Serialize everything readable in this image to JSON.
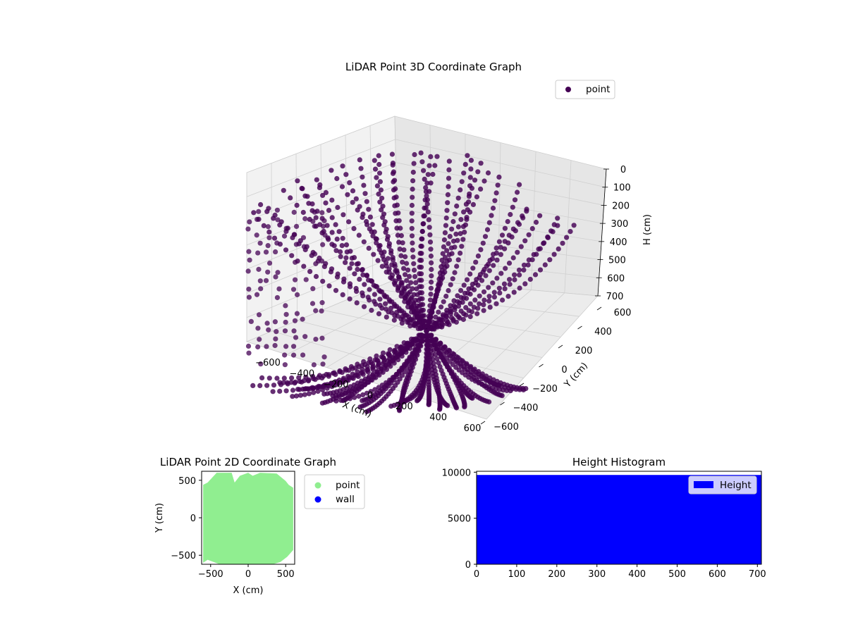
{
  "chart_data": [
    {
      "type": "scatter",
      "title": "LiDAR Point 3D Coordinate Graph",
      "xlabel": "X (cm)",
      "ylabel": "Y (cm)",
      "zlabel": "H (cm)",
      "xlim": [
        -600,
        600
      ],
      "ylim": [
        -600,
        600
      ],
      "zlim": [
        700,
        0
      ],
      "x_ticks": [
        "−600",
        "−400",
        "−200",
        "0",
        "200",
        "400",
        "600"
      ],
      "y_ticks": [
        "−600",
        "−400",
        "−200",
        "0",
        "200",
        "400",
        "600"
      ],
      "z_ticks": [
        "0",
        "100",
        "200",
        "300",
        "400",
        "500",
        "600",
        "700"
      ],
      "series": [
        {
          "name": "point",
          "color": "#440154"
        }
      ],
      "legend": "top-right",
      "grid": true
    },
    {
      "type": "scatter",
      "title": "LiDAR Point 2D Coordinate Graph",
      "xlabel": "X (cm)",
      "ylabel": "Y (cm)",
      "xlim": [
        -620,
        620
      ],
      "ylim": [
        -620,
        620
      ],
      "x_ticks": [
        "−500",
        "0",
        "500"
      ],
      "y_ticks": [
        "−500",
        "0",
        "500"
      ],
      "series": [
        {
          "name": "point",
          "color": "#90ee90"
        },
        {
          "name": "wall",
          "color": "#0000ff"
        }
      ],
      "legend": "outside-right"
    },
    {
      "type": "bar",
      "title": "Height Histogram",
      "x_ticks": [
        "0",
        "100",
        "200",
        "300",
        "400",
        "500",
        "600",
        "700"
      ],
      "y_ticks": [
        "0",
        "5000",
        "10000"
      ],
      "xlim": [
        0,
        710
      ],
      "ylim": [
        0,
        10100
      ],
      "series": [
        {
          "name": "Height",
          "color": "#0000ff",
          "bin_count": 9700
        }
      ],
      "legend": "top-right"
    }
  ]
}
